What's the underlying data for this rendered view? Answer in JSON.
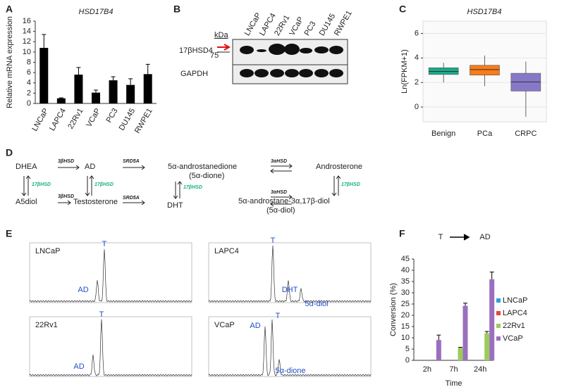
{
  "panel_labels": [
    "A",
    "B",
    "C",
    "D",
    "E",
    "F"
  ],
  "chart_data": [
    {
      "type": "bar",
      "title": "HSD17B4",
      "ylabel": "Relative mRNA expression",
      "categories": [
        "LNCaP",
        "LAPC4",
        "22Rv1",
        "VCaP",
        "PC3",
        "DU145",
        "RWPE1"
      ],
      "values": [
        10.8,
        1,
        5.6,
        2.1,
        4.5,
        3.6,
        5.7
      ],
      "errors": [
        2.6,
        0.1,
        1.4,
        0.5,
        0.7,
        1.2,
        1.9
      ],
      "color": "#000000",
      "ylim": [
        0,
        16
      ],
      "yticks": [
        0,
        2,
        4,
        6,
        8,
        10,
        12,
        14,
        16
      ]
    },
    {
      "type": "box",
      "title": "HSD17B4",
      "ylabel": "Ln(FPKM+1)",
      "categories": [
        "Benign",
        "PCa",
        "CRPC"
      ],
      "boxes": [
        {
          "min": 2.0,
          "q1": 2.65,
          "median": 2.9,
          "q3": 3.2,
          "max": 3.6,
          "color": "#1aaa8a"
        },
        {
          "min": 1.7,
          "q1": 2.6,
          "median": 3.05,
          "q3": 3.4,
          "max": 4.2,
          "color": "#f97c17"
        },
        {
          "min": -0.8,
          "q1": 1.3,
          "median": 2.05,
          "q3": 2.75,
          "max": 3.7,
          "color": "#8878c8"
        }
      ],
      "ylim": [
        -1.2,
        7
      ],
      "yticks": [
        0,
        2,
        4,
        6
      ],
      "grid": true
    },
    {
      "type": "grouped_bar",
      "title_left": "T",
      "title_right": "AD",
      "xlabel": "Time",
      "ylabel": "Conversion (%)",
      "categories": [
        "2h",
        "7h",
        "24h"
      ],
      "series": [
        {
          "name": "LNCaP",
          "color": "#2e9fd8",
          "values": [
            0,
            0,
            0
          ],
          "errors": [
            0,
            0,
            0
          ]
        },
        {
          "name": "LAPC4",
          "color": "#e8453c",
          "values": [
            0,
            0,
            0
          ],
          "errors": [
            0,
            0,
            0
          ]
        },
        {
          "name": "22Rv1",
          "color": "#9ccb5b",
          "values": [
            0,
            5.5,
            12
          ],
          "errors": [
            0,
            0.3,
            0.8
          ]
        },
        {
          "name": "VCaP",
          "color": "#9b6fbf",
          "values": [
            9,
            24.2,
            36
          ],
          "errors": [
            2.2,
            1.2,
            3.2
          ]
        }
      ],
      "ylim": [
        0,
        45
      ],
      "yticks": [
        0,
        5,
        10,
        15,
        20,
        25,
        30,
        35,
        40,
        45
      ],
      "legend": "right"
    }
  ],
  "blot": {
    "lanes": [
      "LNCaP",
      "LAPC4",
      "22Rv1",
      "VCaP",
      "PC3",
      "DU145",
      "RWPE1"
    ],
    "unit": "kDa",
    "marker": "75",
    "rows": [
      "17βHSD4",
      "GAPDH"
    ]
  },
  "pathway": {
    "nodes": [
      "DHEA",
      "AD",
      "5α-androstanedione",
      "(5α-dione)",
      "Androsterone",
      "A5diol",
      "Testosterone",
      "DHT",
      "5α-androstane-3α,17β-diol",
      "(5α-diol)"
    ],
    "enzymes": [
      "3βHSD",
      "SRD5A",
      "3αHSD",
      "17βHSD"
    ]
  },
  "chromatograms": [
    {
      "name": "LNCaP",
      "peaks": [
        "T",
        "AD"
      ]
    },
    {
      "name": "LAPC4",
      "peaks": [
        "T",
        "DHT",
        "5α-diol"
      ]
    },
    {
      "name": "22Rv1",
      "peaks": [
        "T",
        "AD"
      ]
    },
    {
      "name": "VCaP",
      "peaks": [
        "T",
        "AD",
        "5α-dione"
      ]
    }
  ]
}
